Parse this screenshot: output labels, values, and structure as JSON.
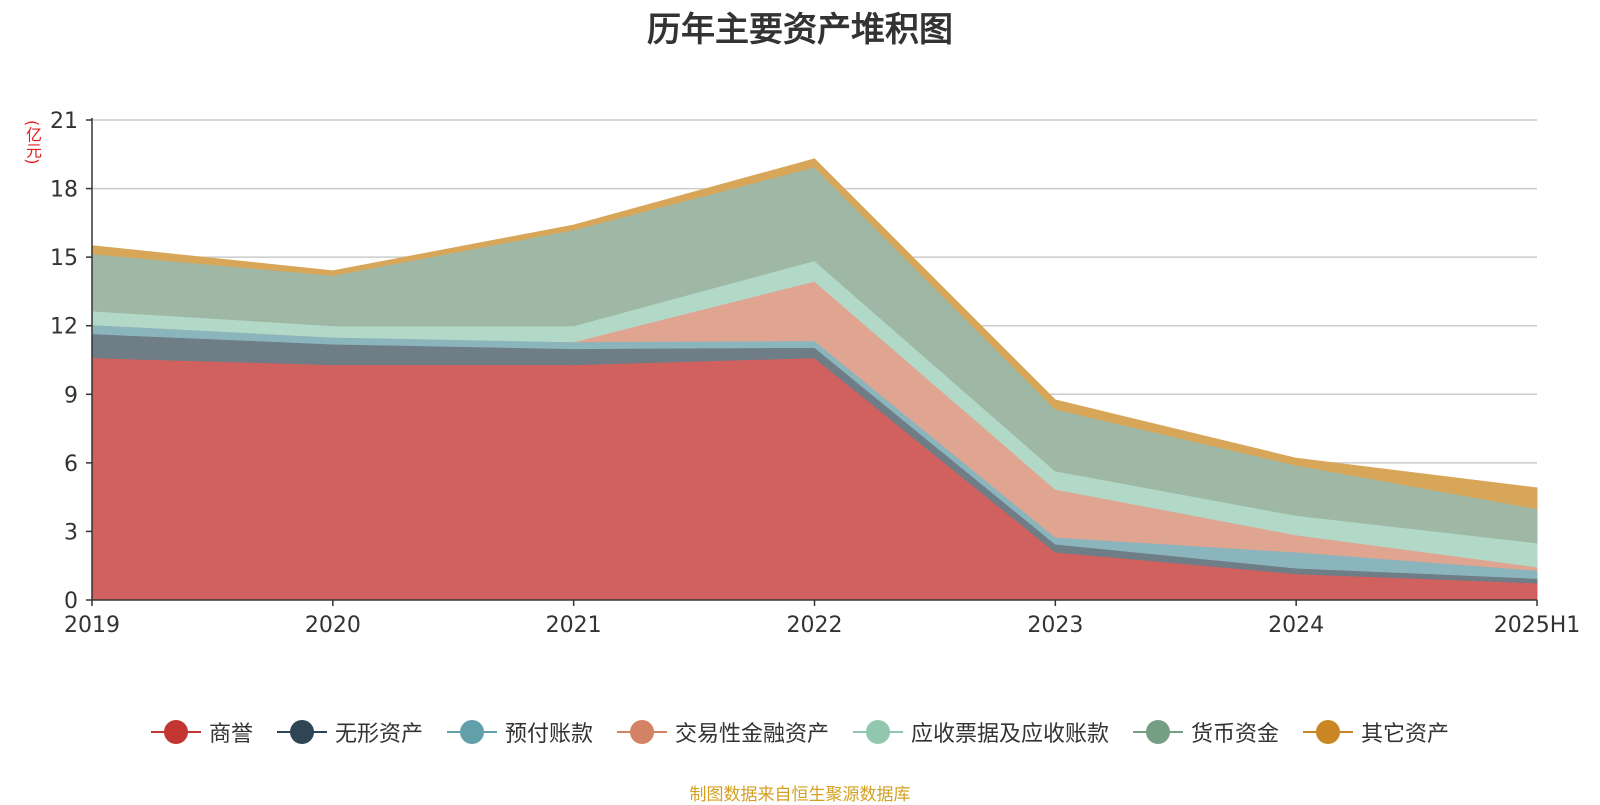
{
  "chart_data": {
    "type": "area",
    "stacked": true,
    "title": "历年主要资产堆积图",
    "unit_label": "(亿元)",
    "source": "制图数据来自恒生聚源数据库",
    "categories": [
      "2019",
      "2020",
      "2021",
      "2022",
      "2023",
      "2024",
      "2025H1"
    ],
    "ylim": [
      0,
      21
    ],
    "yticks": [
      "0",
      "3",
      "6",
      "9",
      "12",
      "15",
      "18",
      "21"
    ],
    "ytick_values": [
      0,
      3,
      6,
      9,
      12,
      15,
      18,
      21
    ],
    "grid": true,
    "legend_position": "bottom",
    "series": [
      {
        "name": "商誉",
        "color": "#d0615f",
        "marker": "#c23531",
        "values": [
          10.6,
          10.3,
          10.3,
          10.6,
          2.1,
          1.15,
          0.75
        ]
      },
      {
        "name": "无形资产",
        "color": "#6f7d87",
        "marker": "#2f4554",
        "values": [
          1.05,
          0.9,
          0.7,
          0.45,
          0.35,
          0.25,
          0.2
        ]
      },
      {
        "name": "预付账款",
        "color": "#8bb5bd",
        "marker": "#61a0a8",
        "values": [
          0.4,
          0.3,
          0.3,
          0.3,
          0.3,
          0.7,
          0.35
        ]
      },
      {
        "name": "交易性金融资产",
        "color": "#dfa591",
        "marker": "#d48265",
        "values": [
          0.0,
          0.0,
          0.0,
          2.6,
          2.1,
          0.75,
          0.15
        ]
      },
      {
        "name": "应收票据及应收账款",
        "color": "#b2d9c7",
        "marker": "#91c7ae",
        "values": [
          0.6,
          0.5,
          0.7,
          0.9,
          0.8,
          0.85,
          1.05
        ]
      },
      {
        "name": "货币资金",
        "color": "#9eb8a5",
        "marker": "#749f83",
        "values": [
          2.5,
          2.2,
          4.2,
          4.1,
          2.7,
          2.2,
          1.5
        ]
      },
      {
        "name": "其它资产",
        "color": "#d8a659",
        "marker": "#ca8622",
        "values": [
          0.35,
          0.2,
          0.2,
          0.35,
          0.4,
          0.3,
          0.9
        ]
      }
    ]
  }
}
